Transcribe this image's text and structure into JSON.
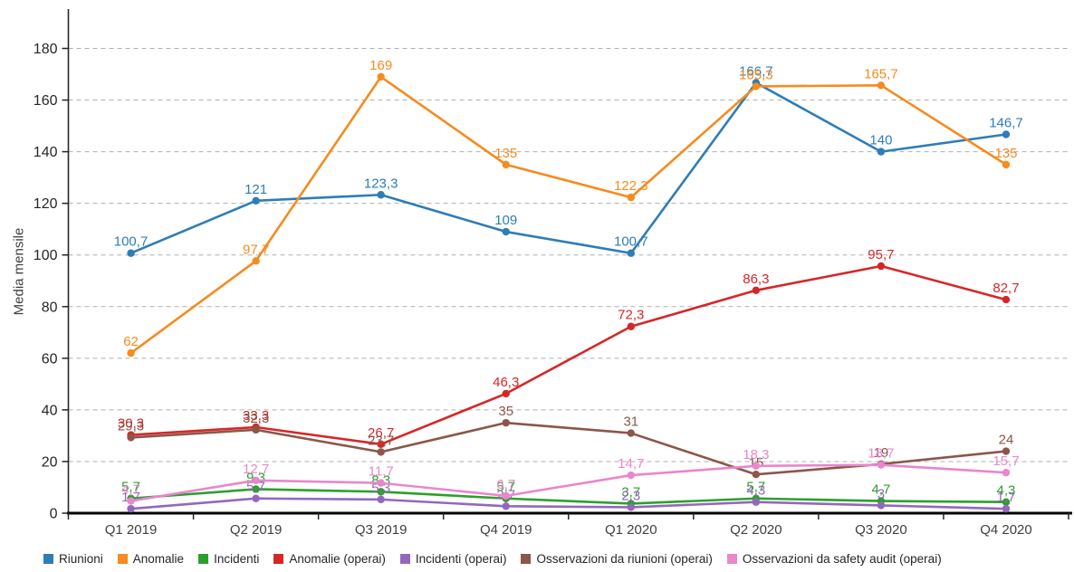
{
  "chart_data": {
    "type": "line",
    "title": "",
    "ylabel": "Media mensile",
    "xlabel": "",
    "ylim": [
      0,
      180
    ],
    "ytick_step": 20,
    "grid": true,
    "legend_position": "bottom",
    "categories": [
      "Q1 2019",
      "Q2 2019",
      "Q3 2019",
      "Q4 2019",
      "Q1 2020",
      "Q2 2020",
      "Q3 2020",
      "Q4 2020"
    ],
    "series": [
      {
        "name": "Riunioni",
        "color": "#2e7db6",
        "values": [
          100.7,
          121,
          123.3,
          109,
          100.7,
          166.7,
          140,
          146.7
        ],
        "labels": [
          "100,7",
          "121",
          "123,3",
          "109",
          "100,7",
          "166,7",
          "140",
          "146,7"
        ]
      },
      {
        "name": "Anomalie",
        "color": "#f68b1f",
        "values": [
          62,
          97.7,
          169,
          135,
          122.3,
          165.3,
          165.7,
          135
        ],
        "labels": [
          "62",
          "97,7",
          "169",
          "135",
          "122,3",
          "165,3",
          "165,7",
          "135"
        ]
      },
      {
        "name": "Incidenti",
        "color": "#2ca02c",
        "values": [
          5.7,
          9.3,
          8.3,
          5.7,
          3.7,
          5.7,
          4.7,
          4.3
        ],
        "labels": [
          "5,7",
          "9,3",
          "8,3",
          "5,7",
          "3,7",
          "5,7",
          "4,7",
          "4,3"
        ]
      },
      {
        "name": "Anomalie (operai)",
        "color": "#d62728",
        "values": [
          30.3,
          33.3,
          26.7,
          46.3,
          72.3,
          86.3,
          95.7,
          82.7
        ],
        "labels": [
          "30,3",
          "33,3",
          "26,7",
          "46,3",
          "72,3",
          "86,3",
          "95,7",
          "82,7"
        ]
      },
      {
        "name": "Incidenti (operai)",
        "color": "#9467bd",
        "values": [
          1.7,
          5.7,
          5.3,
          2.7,
          2.3,
          4.3,
          3,
          1.7
        ],
        "labels": [
          "1,7",
          "5,7",
          "5,3",
          "2,7",
          "2,3",
          "4,3",
          "3",
          "1,7"
        ]
      },
      {
        "name": "Osservazioni da riunioni (operai)",
        "color": "#8c564b",
        "values": [
          29.3,
          32.3,
          23.7,
          35,
          31,
          15,
          19,
          24
        ],
        "labels": [
          "29,3",
          "32,3",
          "23,7",
          "35",
          "31",
          "15",
          "19",
          "24"
        ]
      },
      {
        "name": "Osservazioni da safety audit (operai)",
        "color": "#ea86cd",
        "values": [
          4.7,
          12.7,
          11.7,
          6.7,
          14.7,
          18.3,
          18.7,
          15.7
        ],
        "labels": [
          "4,7",
          "12,7",
          "11,7",
          "6,7",
          "14,7",
          "18,3",
          "18,7",
          "15,7"
        ]
      }
    ]
  },
  "y_axis": {
    "tick_labels": [
      "0",
      "20",
      "40",
      "60",
      "80",
      "100",
      "120",
      "140",
      "160",
      "180"
    ]
  }
}
